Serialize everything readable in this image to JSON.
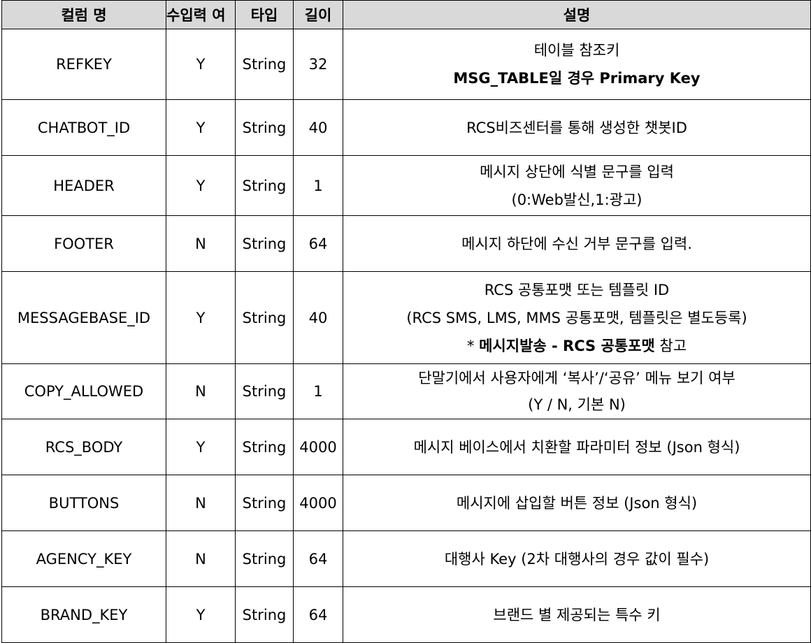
{
  "headers": {
    "column_name": "컬럼 명",
    "required": "수입력 여",
    "type": "타입",
    "length": "길이",
    "description": "설명"
  },
  "rows": [
    {
      "name": "REFKEY",
      "required": "Y",
      "type": "String",
      "length": "32",
      "desc1": "테이블 참조키",
      "desc2": "MSG_TABLE일 경우 Primary Key"
    },
    {
      "name": "CHATBOT_ID",
      "required": "Y",
      "type": "String",
      "length": "40",
      "desc1": "RCS비즈센터를 통해 생성한 챗봇ID"
    },
    {
      "name": "HEADER",
      "required": "Y",
      "type": "String",
      "length": "1",
      "desc1": "메시지 상단에 식별 문구를 입력",
      "desc2": "(0:Web발신,1:광고)"
    },
    {
      "name": "FOOTER",
      "required": "N",
      "type": "String",
      "length": "64",
      "desc1": "메시지 하단에 수신 거부 문구를 입력."
    },
    {
      "name": "MESSAGEBASE_ID",
      "required": "Y",
      "type": "String",
      "length": "40",
      "desc1": "RCS 공통포맷 또는 템플릿 ID",
      "desc2": "(RCS SMS, LMS, MMS 공통포맷, 템플릿은 별도등록)",
      "desc3_prefix": "* ",
      "desc3_bold": "메시지발송 - RCS 공통포맷",
      "desc3_suffix": " 참고"
    },
    {
      "name": "COPY_ALLOWED",
      "required": "N",
      "type": "String",
      "length": "1",
      "desc1": "단말기에서 사용자에게 ‘복사’/‘공유’ 메뉴 보기 여부",
      "desc2": "(Y / N, 기본 N)"
    },
    {
      "name": "RCS_BODY",
      "required": "Y",
      "type": "String",
      "length": "4000",
      "desc1": "메시지 베이스에서 치환할 파라미터 정보 (Json 형식)"
    },
    {
      "name": "BUTTONS",
      "required": "N",
      "type": "String",
      "length": "4000",
      "desc1": "메시지에 삽입할 버튼 정보 (Json 형식)"
    },
    {
      "name": "AGENCY_KEY",
      "required": "N",
      "type": "String",
      "length": "64",
      "desc1": "대행사 Key (2차 대행사의 경우 값이 필수)"
    },
    {
      "name": "BRAND_KEY",
      "required": "Y",
      "type": "String",
      "length": "64",
      "desc1": "브랜드 별 제공되는 특수 키"
    }
  ]
}
